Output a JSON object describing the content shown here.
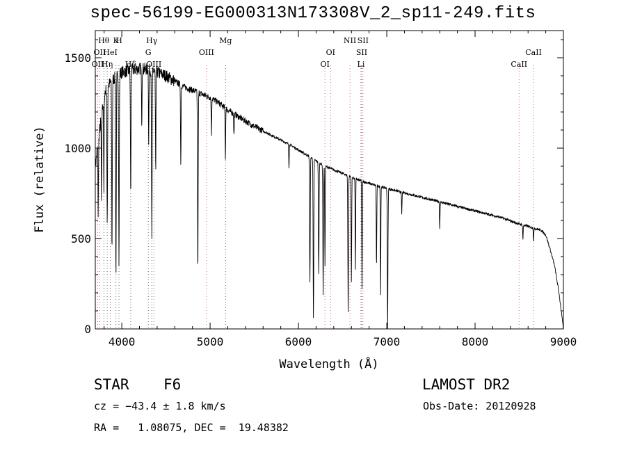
{
  "title": "spec-56199-EG000313N173308V_2_sp11-249.fits",
  "info": {
    "class": "STAR",
    "subclass": "F6",
    "survey": "LAMOST DR2",
    "cz": "cz = −43.4 ± 1.8 km/s",
    "obs_date": "Obs-Date: 20120928",
    "coords": "RA =   1.08075, DEC =  19.48382"
  },
  "chart_data": {
    "type": "line",
    "title": "spec-56199-EG000313N173308V_2_sp11-249.fits",
    "xlabel": "Wavelength (Å)",
    "ylabel": "Flux (relative)",
    "xlim": [
      3700,
      9000
    ],
    "ylim": [
      0,
      1650
    ],
    "xticks": [
      4000,
      5000,
      6000,
      7000,
      8000,
      9000
    ],
    "yticks": [
      0,
      500,
      1000,
      1500
    ],
    "continuum": {
      "x": [
        3700,
        3750,
        3800,
        3850,
        3900,
        3950,
        4000,
        4100,
        4200,
        4300,
        4400,
        4500,
        4600,
        4700,
        4800,
        4900,
        5000,
        5100,
        5200,
        5300,
        5400,
        5500,
        5700,
        5900,
        6100,
        6300,
        6500,
        6700,
        6900,
        7100,
        7300,
        7500,
        7700,
        7900,
        8100,
        8300,
        8500,
        8650,
        8750,
        8800,
        8850,
        8900,
        8950,
        9000
      ],
      "y": [
        900,
        1100,
        1300,
        1350,
        1380,
        1400,
        1420,
        1430,
        1440,
        1435,
        1420,
        1400,
        1370,
        1340,
        1320,
        1300,
        1280,
        1250,
        1210,
        1180,
        1150,
        1120,
        1070,
        1020,
        960,
        900,
        860,
        820,
        790,
        765,
        740,
        715,
        690,
        665,
        640,
        615,
        580,
        560,
        545,
        520,
        440,
        350,
        200,
        0
      ]
    },
    "absorption_lines": [
      {
        "x": 3733,
        "depth": 400
      },
      {
        "x": 3770,
        "depth": 500
      },
      {
        "x": 3797,
        "depth": 550
      },
      {
        "x": 3835,
        "depth": 750
      },
      {
        "x": 3889,
        "depth": 950
      },
      {
        "x": 3934,
        "depth": 1100
      },
      {
        "x": 3968,
        "depth": 1050
      },
      {
        "x": 4101,
        "depth": 700
      },
      {
        "x": 4226,
        "depth": 300
      },
      {
        "x": 4305,
        "depth": 400
      },
      {
        "x": 4340,
        "depth": 950
      },
      {
        "x": 4384,
        "depth": 600
      },
      {
        "x": 4668,
        "depth": 450
      },
      {
        "x": 4861,
        "depth": 1000
      },
      {
        "x": 5015,
        "depth": 200
      },
      {
        "x": 5173,
        "depth": 280
      },
      {
        "x": 5270,
        "depth": 120
      },
      {
        "x": 5893,
        "depth": 130
      },
      {
        "x": 6130,
        "depth": 700
      },
      {
        "x": 6170,
        "depth": 880
      },
      {
        "x": 6230,
        "depth": 620
      },
      {
        "x": 6280,
        "depth": 720
      },
      {
        "x": 6300,
        "depth": 550
      },
      {
        "x": 6563,
        "depth": 760
      },
      {
        "x": 6600,
        "depth": 580
      },
      {
        "x": 6645,
        "depth": 500
      },
      {
        "x": 6720,
        "depth": 600
      },
      {
        "x": 6884,
        "depth": 460
      },
      {
        "x": 6930,
        "depth": 600
      },
      {
        "x": 7010,
        "depth": 800
      },
      {
        "x": 7170,
        "depth": 120
      },
      {
        "x": 7600,
        "depth": 150
      },
      {
        "x": 8542,
        "depth": 80
      },
      {
        "x": 8662,
        "depth": 70
      }
    ],
    "line_markers": [
      {
        "x": 3727,
        "label": "OII",
        "row": 2,
        "color": "#cc4444"
      },
      {
        "x": 3750,
        "label": "OII",
        "row": 1,
        "color": "#cc4444"
      },
      {
        "x": 3797,
        "label": "Hθ",
        "row": 0,
        "color": "#444444"
      },
      {
        "x": 3835,
        "label": "Hη",
        "row": 2,
        "color": "#444444"
      },
      {
        "x": 3870,
        "label": "HeI",
        "row": 1,
        "color": "#444444"
      },
      {
        "x": 3934,
        "label": "K",
        "row": 0,
        "color": "#444444"
      },
      {
        "x": 3968,
        "label": "H",
        "row": 0,
        "color": "#444444"
      },
      {
        "x": 4101,
        "label": "Hδ",
        "row": 2,
        "color": "#444444"
      },
      {
        "x": 4300,
        "label": "G",
        "row": 1,
        "color": "#444444"
      },
      {
        "x": 4340,
        "label": "Hγ",
        "row": 0,
        "color": "#444444"
      },
      {
        "x": 4363,
        "label": "OIII",
        "row": 2,
        "color": "#cc4444"
      },
      {
        "x": 4959,
        "label": "OIII",
        "row": 1,
        "color": "#cc4444"
      },
      {
        "x": 5175,
        "label": "Mg",
        "row": 0,
        "color": "#444444"
      },
      {
        "x": 6300,
        "label": "OI",
        "row": 2,
        "color": "#cc4444"
      },
      {
        "x": 6364,
        "label": "OI",
        "row": 1,
        "color": "#cc4444"
      },
      {
        "x": 6583,
        "label": "NII",
        "row": 0,
        "color": "#cc4444"
      },
      {
        "x": 6708,
        "label": "Li",
        "row": 2,
        "color": "#444444"
      },
      {
        "x": 6716,
        "label": "SII",
        "row": 1,
        "color": "#cc4444"
      },
      {
        "x": 6731,
        "label": "SII",
        "row": 0,
        "color": "#cc4444"
      },
      {
        "x": 8498,
        "label": "CaII",
        "row": 2,
        "color": "#cc4444"
      },
      {
        "x": 8662,
        "label": "CaII",
        "row": 1,
        "color": "#cc4444"
      }
    ],
    "grid": false,
    "legend": "none"
  }
}
